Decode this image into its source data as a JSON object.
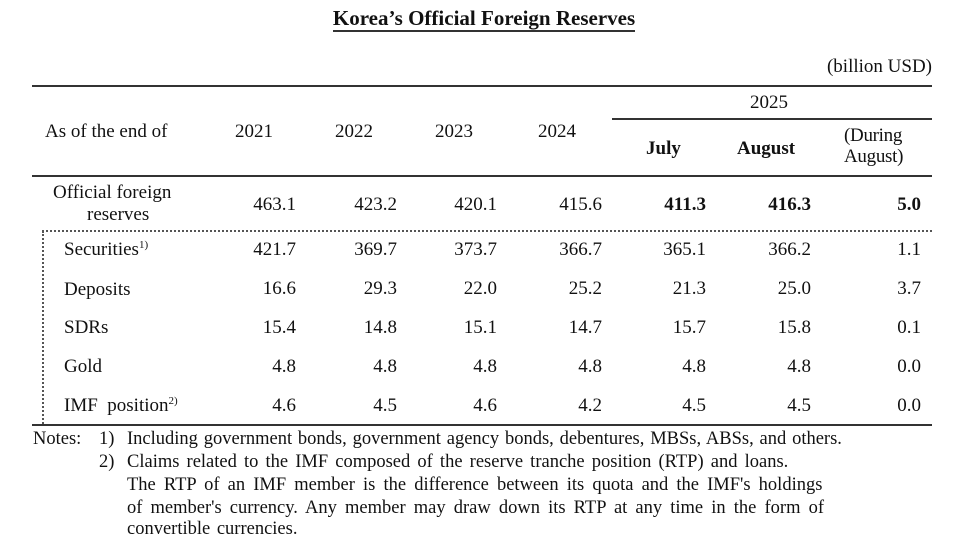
{
  "title": "Korea’s  Official  Foreign  Reserves",
  "unit": "(billion USD)",
  "header": {
    "row_label": "As of the end of",
    "years": [
      "2021",
      "2022",
      "2023",
      "2024"
    ],
    "group_year": "2025",
    "months": [
      "July",
      "August"
    ],
    "change_line1": "(During",
    "change_line2": "August)"
  },
  "rows": [
    {
      "label_line1": "Official  foreign",
      "label_line2": "reserves",
      "values": [
        "463.1",
        "423.2",
        "420.1",
        "415.6",
        "411.3",
        "416.3",
        "5.0"
      ]
    },
    {
      "label": "Securities",
      "sup": "1)",
      "values": [
        "421.7",
        "369.7",
        "373.7",
        "366.7",
        "365.1",
        "366.2",
        "1.1"
      ]
    },
    {
      "label": "Deposits",
      "values": [
        "16.6",
        "29.3",
        "22.0",
        "25.2",
        "21.3",
        "25.0",
        "3.7"
      ]
    },
    {
      "label": "SDRs",
      "values": [
        "15.4",
        "14.8",
        "15.1",
        "14.7",
        "15.7",
        "15.8",
        "0.1"
      ]
    },
    {
      "label": "Gold",
      "values": [
        "4.8",
        "4.8",
        "4.8",
        "4.8",
        "4.8",
        "4.8",
        "0.0"
      ]
    },
    {
      "label": "IMF  position",
      "sup": "2)",
      "values": [
        "4.6",
        "4.5",
        "4.6",
        "4.2",
        "4.5",
        "4.5",
        "0.0"
      ]
    }
  ],
  "notes": {
    "prefix": "Notes:",
    "n1_num": "1)",
    "n1_text": "Including government bonds, government agency bonds, debentures, MBSs, ABSs, and others.",
    "n2_num": "2)",
    "n2_line1": "Claims related to the IMF composed of the reserve tranche position (RTP) and loans.",
    "n2_line2": "The RTP of an IMF member is the difference between its quota and the IMF's holdings",
    "n2_line3": "of member's currency. Any member may draw down its RTP at any time in the form of",
    "n2_line4": "convertible currencies."
  }
}
